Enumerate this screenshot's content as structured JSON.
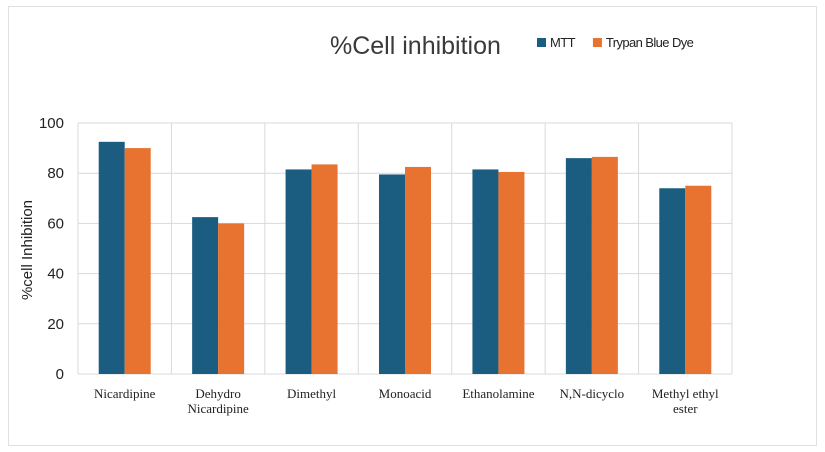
{
  "chart_data": {
    "type": "bar",
    "title": "%Cell inhibition",
    "ylabel": "%cell Inhibition",
    "xlabel": "",
    "ylim": [
      0,
      100
    ],
    "yticks": [
      0,
      20,
      40,
      60,
      80,
      100
    ],
    "grid": true,
    "legend_position": "top-right",
    "categories": [
      [
        "Nicardipine"
      ],
      [
        "Dehydro",
        "Nicardipine"
      ],
      [
        "Dimethyl"
      ],
      [
        "Monoacid"
      ],
      [
        "Ethanolamine"
      ],
      [
        "N,N-dicyclo"
      ],
      [
        "Methyl ethyl",
        "ester"
      ]
    ],
    "series": [
      {
        "name": "MTT",
        "color": "#1a5d80",
        "values": [
          92.5,
          62.5,
          81.5,
          79.5,
          81.5,
          86,
          74
        ]
      },
      {
        "name": "Trypan Blue Dye",
        "color": "#e8722f",
        "values": [
          90,
          60,
          83.5,
          82.5,
          80.5,
          86.5,
          75
        ]
      }
    ]
  }
}
